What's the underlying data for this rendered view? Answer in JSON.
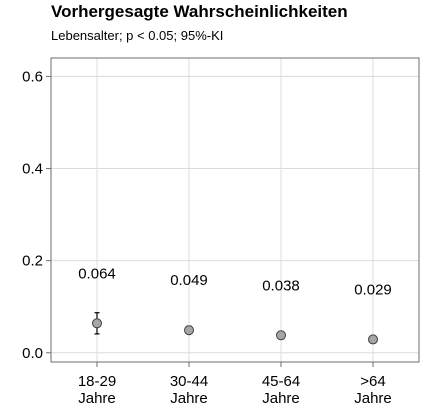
{
  "chart_data": {
    "type": "scatter",
    "title": "Vorhergesagte Wahrscheinlichkeiten",
    "subtitle": "Lebensalter; p < 0.05; 95%-KI",
    "xlabel": "",
    "ylabel": "",
    "categories": [
      [
        "18-29",
        "Jahre"
      ],
      [
        "30-44",
        "Jahre"
      ],
      [
        "45-64",
        "Jahre"
      ],
      [
        ">64",
        "Jahre"
      ]
    ],
    "values": [
      0.064,
      0.049,
      0.038,
      0.029
    ],
    "data_labels": [
      "0.064",
      "0.049",
      "0.038",
      "0.029"
    ],
    "ci_lower": [
      0.041,
      0.041,
      0.034,
      0.021
    ],
    "ci_upper": [
      0.087,
      0.058,
      0.042,
      0.037
    ],
    "ylim": [
      -0.02,
      0.64
    ],
    "yticks": [
      0.0,
      0.2,
      0.4,
      0.6
    ],
    "ytick_labels": [
      "0.0",
      "0.2",
      "0.4",
      "0.6"
    ],
    "grid": true,
    "legend": "none",
    "colors": {
      "point_fill": "#a6a6a6",
      "point_stroke": "#404040",
      "grid": "#dcdcdc",
      "frame": "#6e6e6e"
    }
  }
}
